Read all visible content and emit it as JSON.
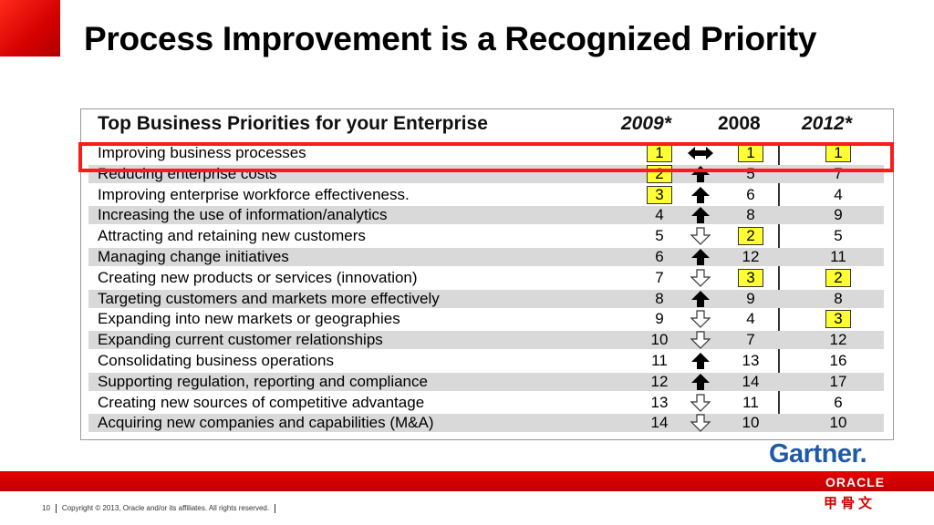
{
  "slide": {
    "title": "Process Improvement is a Recognized Priority",
    "page_number": "10",
    "copyright": "Copyright © 2013, Oracle and/or its affiliates. All rights reserved."
  },
  "brand": {
    "accent": "#d40000",
    "oracle_label": "ORACLE",
    "oracle_cn": "甲骨文",
    "source_logo": "Gartner."
  },
  "table": {
    "header": {
      "title": "Top Business Priorities for your Enterprise",
      "col_2009": "2009*",
      "col_2008": "2008",
      "col_2012": "2012*"
    },
    "highlight_color": "#ffff33",
    "rows": [
      {
        "label": "Improving business processes",
        "y2009": "1",
        "trend": "both",
        "y2008": "1",
        "y2012": "1",
        "hl2009": true,
        "hl2008": true,
        "hl2012": true
      },
      {
        "label": "Reducing enterprise costs",
        "y2009": "2",
        "trend": "up",
        "y2008": "5",
        "y2012": "7",
        "hl2009": true
      },
      {
        "label": "Improving enterprise workforce effectiveness.",
        "y2009": "3",
        "trend": "up",
        "y2008": "6",
        "y2012": "4",
        "hl2009": true
      },
      {
        "label": "Increasing the use of information/analytics",
        "y2009": "4",
        "trend": "up",
        "y2008": "8",
        "y2012": "9"
      },
      {
        "label": "Attracting and retaining new customers",
        "y2009": "5",
        "trend": "down",
        "y2008": "2",
        "y2012": "5",
        "hl2008": true
      },
      {
        "label": "Managing change initiatives",
        "y2009": "6",
        "trend": "up",
        "y2008": "12",
        "y2012": "11"
      },
      {
        "label": "Creating new products or services (innovation)",
        "y2009": "7",
        "trend": "down",
        "y2008": "3",
        "y2012": "2",
        "hl2008": true,
        "hl2012": true
      },
      {
        "label": "Targeting customers and markets more effectively",
        "y2009": "8",
        "trend": "up",
        "y2008": "9",
        "y2012": "8"
      },
      {
        "label": "Expanding into new markets or geographies",
        "y2009": "9",
        "trend": "down",
        "y2008": "4",
        "y2012": "3",
        "hl2012": true
      },
      {
        "label": "Expanding current customer relationships",
        "y2009": "10",
        "trend": "down",
        "y2008": "7",
        "y2012": "12"
      },
      {
        "label": "Consolidating business operations",
        "y2009": "11",
        "trend": "up",
        "y2008": "13",
        "y2012": "16"
      },
      {
        "label": "Supporting regulation, reporting and compliance",
        "y2009": "12",
        "trend": "up",
        "y2008": "14",
        "y2012": "17"
      },
      {
        "label": "Creating new sources of competitive advantage",
        "y2009": "13",
        "trend": "down",
        "y2008": "11",
        "y2012": "6"
      },
      {
        "label": "Acquiring new companies and capabilities (M&A)",
        "y2009": "14",
        "trend": "down",
        "y2008": "10",
        "y2012": "10"
      }
    ]
  }
}
